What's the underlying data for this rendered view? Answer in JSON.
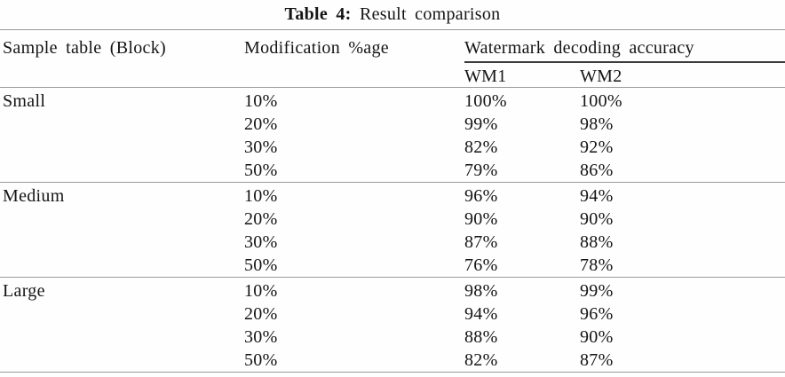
{
  "caption": {
    "label": "Table 4:",
    "text": "Result comparison"
  },
  "table": {
    "columns": {
      "sample_block": "Sample table (Block)",
      "modification": "Modification %age",
      "accuracy_group": "Watermark decoding accuracy",
      "wm1": "WM1",
      "wm2": "WM2"
    },
    "blocks": [
      {
        "name": "Small",
        "rows": [
          {
            "modification": "10%",
            "wm1": "100%",
            "wm2": "100%"
          },
          {
            "modification": "20%",
            "wm1": "99%",
            "wm2": "98%"
          },
          {
            "modification": "30%",
            "wm1": "82%",
            "wm2": "92%"
          },
          {
            "modification": "50%",
            "wm1": "79%",
            "wm2": "86%"
          }
        ]
      },
      {
        "name": "Medium",
        "rows": [
          {
            "modification": "10%",
            "wm1": "96%",
            "wm2": "94%"
          },
          {
            "modification": "20%",
            "wm1": "90%",
            "wm2": "90%"
          },
          {
            "modification": "30%",
            "wm1": "87%",
            "wm2": "88%"
          },
          {
            "modification": "50%",
            "wm1": "76%",
            "wm2": "78%"
          }
        ]
      },
      {
        "name": "Large",
        "rows": [
          {
            "modification": "10%",
            "wm1": "98%",
            "wm2": "99%"
          },
          {
            "modification": "20%",
            "wm1": "94%",
            "wm2": "96%"
          },
          {
            "modification": "30%",
            "wm1": "88%",
            "wm2": "90%"
          },
          {
            "modification": "50%",
            "wm1": "82%",
            "wm2": "87%"
          }
        ]
      }
    ]
  },
  "colors": {
    "background": "#fefefe",
    "text": "#141414",
    "rule_light": "#9a9a9a",
    "rule_dark": "#3c3c3c"
  }
}
